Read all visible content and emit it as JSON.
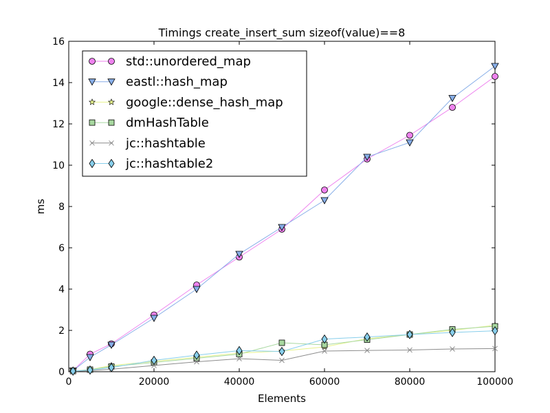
{
  "chart_data": {
    "type": "line",
    "title": "Timings create_insert_sum sizeof(value)==8",
    "xlabel": "Elements",
    "ylabel": "ms",
    "xlim": [
      0,
      100000
    ],
    "ylim": [
      0,
      16
    ],
    "xticks": [
      "0",
      "20000",
      "40000",
      "60000",
      "80000",
      "100000"
    ],
    "yticks": [
      "0",
      "2",
      "4",
      "6",
      "8",
      "10",
      "12",
      "14",
      "16"
    ],
    "grid": false,
    "legend_position": "top-left",
    "x": [
      1000,
      5000,
      10000,
      20000,
      30000,
      40000,
      50000,
      60000,
      70000,
      80000,
      90000,
      100000
    ],
    "series": [
      {
        "name": "std::unordered_map",
        "color": "#ee82ee",
        "marker": "circle",
        "values": [
          0.05,
          0.85,
          1.35,
          2.75,
          4.2,
          5.55,
          6.9,
          8.8,
          10.3,
          11.45,
          12.8,
          14.3
        ]
      },
      {
        "name": "eastl::hash_map",
        "color": "#87aee8",
        "marker": "triangle-down",
        "values": [
          0.05,
          0.7,
          1.3,
          2.6,
          4.0,
          5.7,
          7.0,
          8.3,
          10.4,
          11.1,
          13.25,
          14.8
        ]
      },
      {
        "name": "google::dense_hash_map",
        "color": "#e6f28c",
        "marker": "star",
        "values": [
          0.02,
          0.1,
          0.3,
          0.5,
          0.7,
          0.9,
          1.0,
          1.2,
          1.6,
          1.8,
          2.0,
          2.25
        ]
      },
      {
        "name": "dmHashTable",
        "color": "#a8d8a0",
        "marker": "square",
        "values": [
          0.03,
          0.1,
          0.25,
          0.45,
          0.65,
          0.85,
          1.4,
          1.3,
          1.55,
          1.8,
          2.05,
          2.2
        ]
      },
      {
        "name": "jc::hashtable",
        "color": "#8c8c8c",
        "marker": "x",
        "values": [
          0.02,
          0.05,
          0.12,
          0.3,
          0.48,
          0.63,
          0.55,
          1.0,
          1.03,
          1.05,
          1.1,
          1.12
        ]
      },
      {
        "name": "jc::hashtable2",
        "color": "#87ceeb",
        "marker": "diamond",
        "values": [
          0.03,
          0.08,
          0.2,
          0.55,
          0.8,
          1.02,
          0.98,
          1.58,
          1.68,
          1.8,
          1.9,
          1.98
        ]
      }
    ]
  }
}
